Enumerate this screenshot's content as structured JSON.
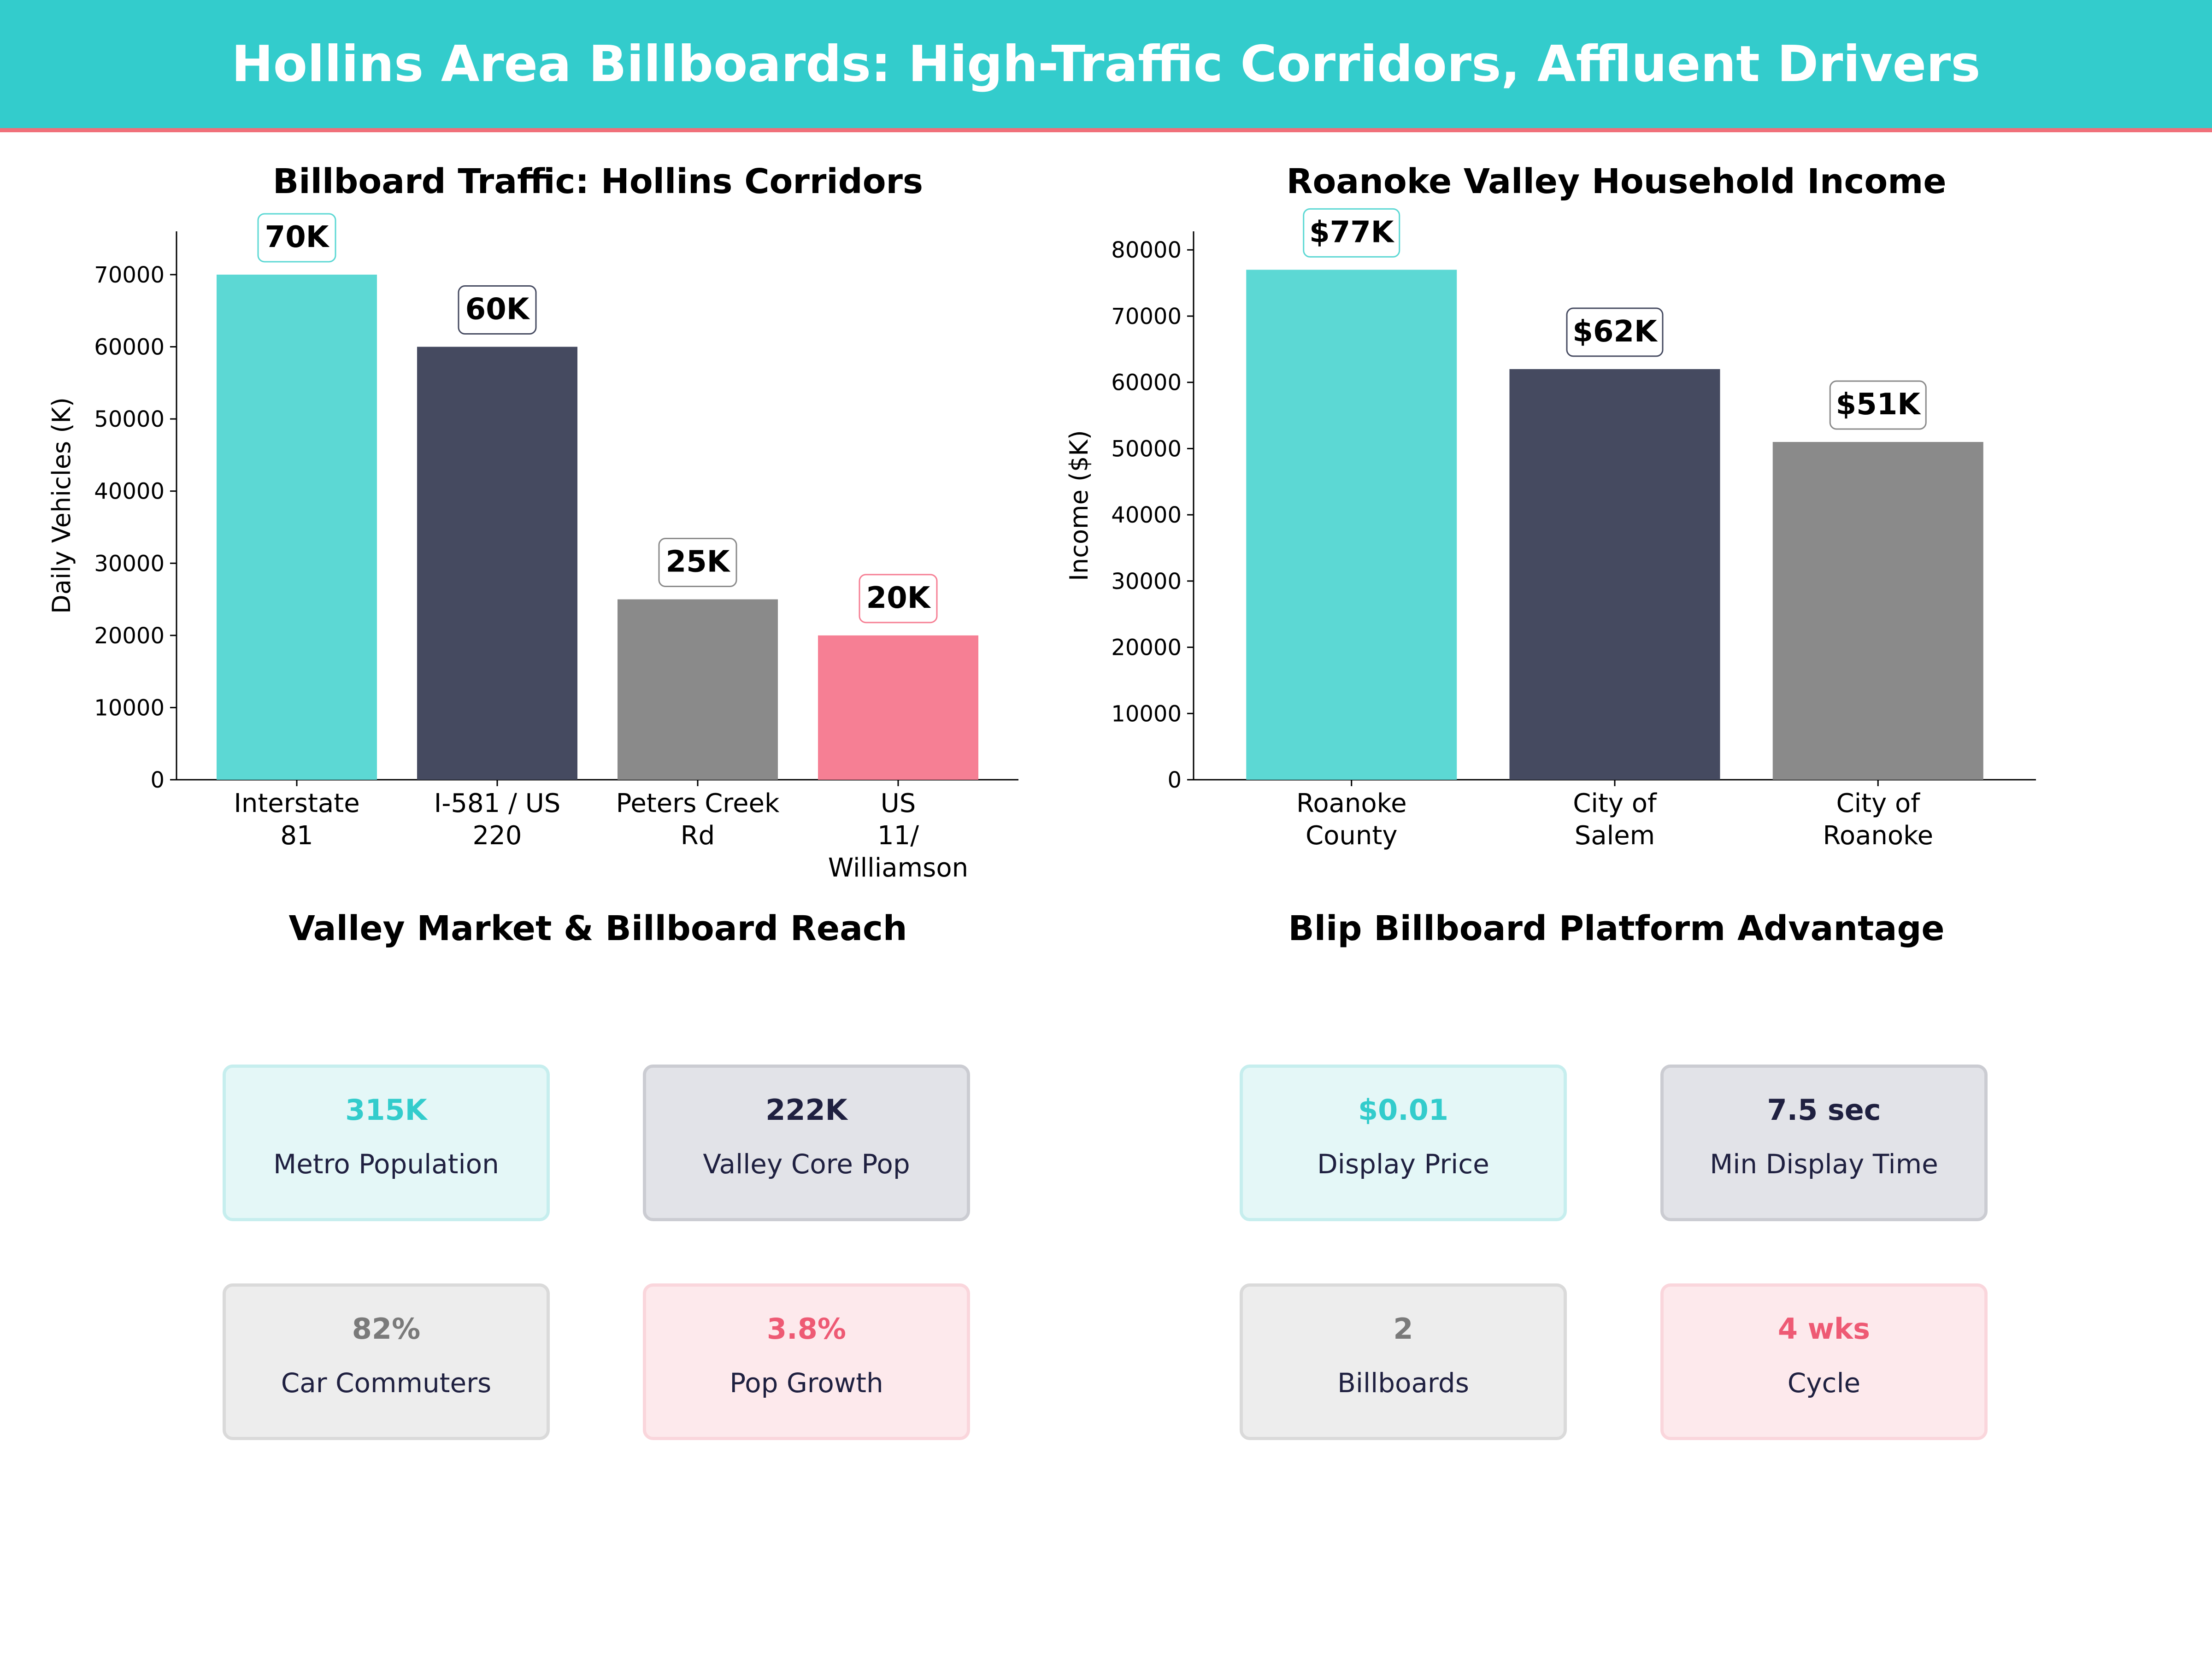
{
  "title": "Hollins Area Billboards: High-Traffic Corridors, Affluent Drivers",
  "colors": {
    "banner": "#33CCCC",
    "accent_line": "#F0707A",
    "teal": "#5CD8D4",
    "navy": "#454A60",
    "gray": "#8A8A8A",
    "pink": "#F67F94"
  },
  "chart_data": [
    {
      "type": "bar",
      "title": "Billboard Traffic: Hollins Corridors",
      "xlabel": "",
      "ylabel": "Daily Vehicles (K)",
      "categories": [
        [
          "Interstate",
          "81"
        ],
        [
          "I-581 / US",
          "220"
        ],
        [
          "Peters Creek",
          "Rd"
        ],
        [
          "US",
          "11/",
          "Williamson"
        ]
      ],
      "values": [
        70000,
        60000,
        25000,
        20000
      ],
      "data_labels": [
        "70K",
        "60K",
        "25K",
        "20K"
      ],
      "bar_colors": [
        "#5CD8D4",
        "#454A60",
        "#8A8A8A",
        "#F67F94"
      ],
      "label_border_colors": [
        "#5CD8D4",
        "#454A60",
        "#8A8A8A",
        "#F67F94"
      ],
      "ylim": [
        0,
        76000
      ],
      "yticks": [
        0,
        10000,
        20000,
        30000,
        40000,
        50000,
        60000,
        70000
      ],
      "grid": false
    },
    {
      "type": "bar",
      "title": "Roanoke Valley Household Income",
      "xlabel": "",
      "ylabel": "Income ($K)",
      "categories": [
        [
          "Roanoke",
          "County"
        ],
        [
          "City of",
          "Salem"
        ],
        [
          "City of",
          "Roanoke"
        ]
      ],
      "values": [
        77000,
        62000,
        51000
      ],
      "data_labels": [
        "$77K",
        "$62K",
        "$51K"
      ],
      "bar_colors": [
        "#5CD8D4",
        "#454A60",
        "#8A8A8A"
      ],
      "label_border_colors": [
        "#5CD8D4",
        "#454A60",
        "#8A8A8A"
      ],
      "ylim": [
        0,
        82800
      ],
      "yticks": [
        0,
        10000,
        20000,
        30000,
        40000,
        50000,
        60000,
        70000,
        80000
      ],
      "grid": false
    }
  ],
  "market": {
    "title": "Valley Market & Billboard Reach",
    "cards": [
      {
        "value": "315K",
        "label": "Metro Population",
        "tone": "teal"
      },
      {
        "value": "222K",
        "label": "Valley Core Pop",
        "tone": "navy"
      },
      {
        "value": "82%",
        "label": "Car Commuters",
        "tone": "gray"
      },
      {
        "value": "3.8%",
        "label": "Pop Growth",
        "tone": "pink"
      }
    ]
  },
  "platform": {
    "title": "Blip Billboard Platform Advantage",
    "cards": [
      {
        "value": "$0.01",
        "label": "Display Price",
        "tone": "teal"
      },
      {
        "value": "7.5 sec",
        "label": "Min Display Time",
        "tone": "navy"
      },
      {
        "value": "2",
        "label": "Billboards",
        "tone": "gray"
      },
      {
        "value": "4 wks",
        "label": "Cycle",
        "tone": "pink"
      }
    ]
  }
}
